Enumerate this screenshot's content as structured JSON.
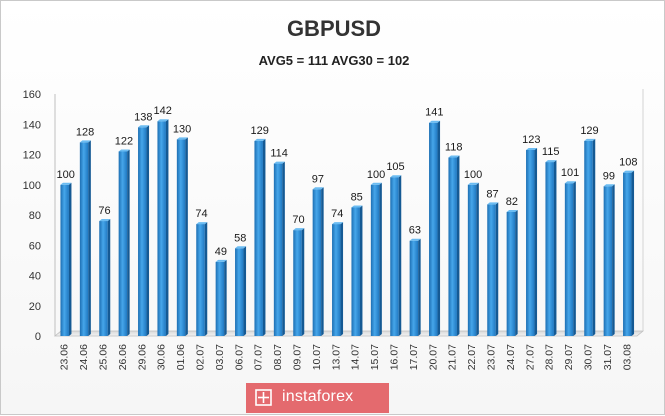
{
  "chart_data": {
    "type": "bar",
    "title": "GBPUSD",
    "subtitle": "AVG5 = 111 AVG30 = 102",
    "categories": [
      "23.06",
      "24.06",
      "25.06",
      "26.06",
      "29.06",
      "30.06",
      "01.06",
      "02.07",
      "03.07",
      "06.07",
      "07.07",
      "08.07",
      "09.07",
      "10.07",
      "13.07",
      "14.07",
      "15.07",
      "16.07",
      "17.07",
      "20.07",
      "21.07",
      "22.07",
      "23.07",
      "24.07",
      "27.07",
      "28.07",
      "29.07",
      "30.07",
      "31.07",
      "03.08"
    ],
    "values": [
      100,
      128,
      76,
      122,
      138,
      142,
      130,
      74,
      49,
      58,
      129,
      114,
      70,
      97,
      74,
      85,
      100,
      105,
      63,
      141,
      118,
      100,
      87,
      82,
      123,
      115,
      101,
      129,
      99,
      108
    ],
    "ylim": [
      0,
      160
    ],
    "yticks": [
      0,
      20,
      40,
      60,
      80,
      100,
      120,
      140,
      160
    ],
    "grid": false,
    "legend": "none",
    "bar_color": "#2f8fd6"
  },
  "brand": {
    "name": "instaforex",
    "icon": "instaforex-logo-icon",
    "color": "#e46a6e"
  }
}
